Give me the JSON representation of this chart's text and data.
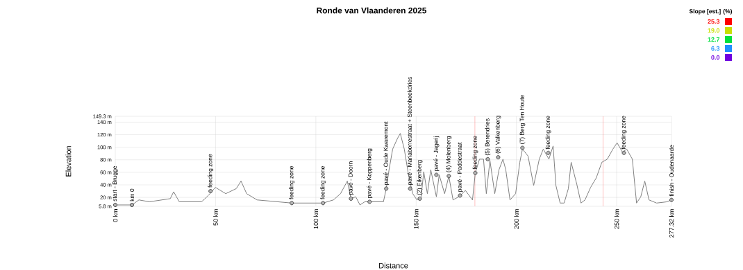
{
  "chart_data": {
    "type": "line",
    "title": "Ronde van Vlaanderen 2025",
    "xlabel": "Distance",
    "ylabel": "Elevation",
    "clabel": "Slope [est.] (%)",
    "clim": [
      0,
      25.3
    ],
    "cticks": [
      {
        "value": 0,
        "label": "0.0"
      },
      6.3,
      12.7,
      {
        "value": 19,
        "label": "19.0"
      },
      25.3
    ],
    "x": [
      0,
      8.3,
      11.8,
      17,
      27.4,
      29.1,
      31.9,
      43,
      46.4,
      49.9,
      55.1,
      60.3,
      62.7,
      65.5,
      70.7,
      88,
      103.6,
      108.8,
      112.3,
      115.7,
      117.5,
      119.9,
      122,
      124.4,
      133.7,
      135.1,
      136.5,
      138.3,
      140.7,
      142.1,
      144.1,
      146.2,
      148.3,
      150.4,
      152.5,
      153.8,
      155.6,
      157.3,
      160.1,
      161.5,
      164.2,
      166.3,
      168.4,
      171.2,
      174.6,
      178.1,
      179.5,
      181.6,
      183.6,
      185,
      186.8,
      189.2,
      191.3,
      193.3,
      194.7,
      196.8,
      199.6,
      201.7,
      203,
      205.8,
      208.6,
      211.4,
      213.4,
      216.2,
      218.3,
      219.7,
      221.8,
      223.8,
      225.9,
      227.3,
      230.1,
      232.2,
      234.2,
      237,
      239.8,
      242.6,
      245.3,
      248.1,
      250.2,
      252.9,
      255,
      257.8,
      259.9,
      262,
      264,
      266.1,
      269.9,
      275.1,
      277.32
    ],
    "series": [
      {
        "color": "#808080",
        "values": [
          8,
          8,
          16,
          13,
          18,
          29,
          13,
          13,
          23,
          36,
          26,
          34,
          46,
          26,
          16,
          11,
          11,
          16,
          26,
          46,
          18,
          21,
          8,
          13,
          13,
          34,
          64,
          97,
          114,
          122,
          97,
          56,
          26,
          16,
          21,
          61,
          26,
          64,
          21,
          56,
          26,
          54,
          16,
          21,
          31,
          16,
          59,
          81,
          81,
          26,
          79,
          26,
          64,
          81,
          64,
          16,
          26,
          76,
          97,
          86,
          39,
          81,
          97,
          81,
          102,
          39,
          11,
          11,
          34,
          76,
          41,
          11,
          16,
          36,
          51,
          76,
          81,
          97,
          107,
          92,
          97,
          81,
          11,
          21,
          46,
          16,
          11,
          13,
          16
        ]
      }
    ],
    "xlim": [
      0,
      277.32
    ],
    "ylim": [
      5.8,
      149.3
    ],
    "xticks": [
      {
        "value": 0,
        "label": "0 km"
      },
      {
        "value": 50,
        "label": "50 km"
      },
      {
        "value": 100,
        "label": "100 km"
      },
      {
        "value": 150,
        "label": "150 km"
      },
      {
        "value": 200,
        "label": "200 km"
      },
      {
        "value": 250,
        "label": "250 km"
      },
      {
        "value": 277.32,
        "label": "277.32 km"
      }
    ],
    "yticks": [
      {
        "value": 5.8,
        "label": "5.8 m"
      },
      {
        "value": 20,
        "label": "20 m"
      },
      {
        "value": 40,
        "label": "40 m"
      },
      {
        "value": 60,
        "label": "60 m"
      },
      {
        "value": 80,
        "label": "80 m"
      },
      {
        "value": 100,
        "label": "100 m"
      },
      {
        "value": 120,
        "label": "120 m"
      },
      {
        "value": 140,
        "label": "140 m"
      },
      {
        "value": 149.3,
        "label": "149.3 m"
      }
    ],
    "grid": true,
    "ref_lines": [
      {
        "axis": "x",
        "value": 179.3,
        "color": "#ff6060"
      },
      {
        "axis": "x",
        "value": 243.2,
        "color": "#ff6060"
      }
    ],
    "annotations": [
      {
        "text": "start - Brugge",
        "x": 0,
        "y": 8
      },
      {
        "text": "km 0",
        "x": 8.3,
        "y": 8
      },
      {
        "text": "feeding zone",
        "x": 47.5,
        "y": 30
      },
      {
        "text": "feeding zone",
        "x": 88,
        "y": 11
      },
      {
        "text": "feeding zone",
        "x": 103.6,
        "y": 11
      },
      {
        "text": "pavé - Doorn",
        "x": 117.5,
        "y": 18
      },
      {
        "text": "pavé - Koppenberg",
        "x": 126.8,
        "y": 13
      },
      {
        "text": "pavé - Oude Kwaremont",
        "x": 135.1,
        "y": 34
      },
      {
        "text": "pavé - Mariaborrestraat + Steenbeekdries",
        "x": 147,
        "y": 34
      },
      {
        "text": "(2) Eikenberg",
        "x": 151.8,
        "y": 18
      },
      {
        "text": "pavé - Jagerij",
        "x": 160.1,
        "y": 56
      },
      {
        "text": "(4) Molenberg",
        "x": 166.3,
        "y": 54
      },
      {
        "text": "pavé - Paddestraat",
        "x": 171.9,
        "y": 23
      },
      {
        "text": "feeding zone",
        "x": 179.5,
        "y": 59
      },
      {
        "text": "(5) Berendries",
        "x": 185.7,
        "y": 81
      },
      {
        "text": "(6) Valkenberg",
        "x": 190.9,
        "y": 84
      },
      {
        "text": "(7) Berg Ten Houte",
        "x": 203,
        "y": 99
      },
      {
        "text": "feeding zone",
        "x": 215.9,
        "y": 91
      },
      {
        "text": "feeding zone",
        "x": 253.6,
        "y": 91
      },
      {
        "text": "finish - Oudenaarde",
        "x": 277.32,
        "y": 16
      }
    ]
  }
}
